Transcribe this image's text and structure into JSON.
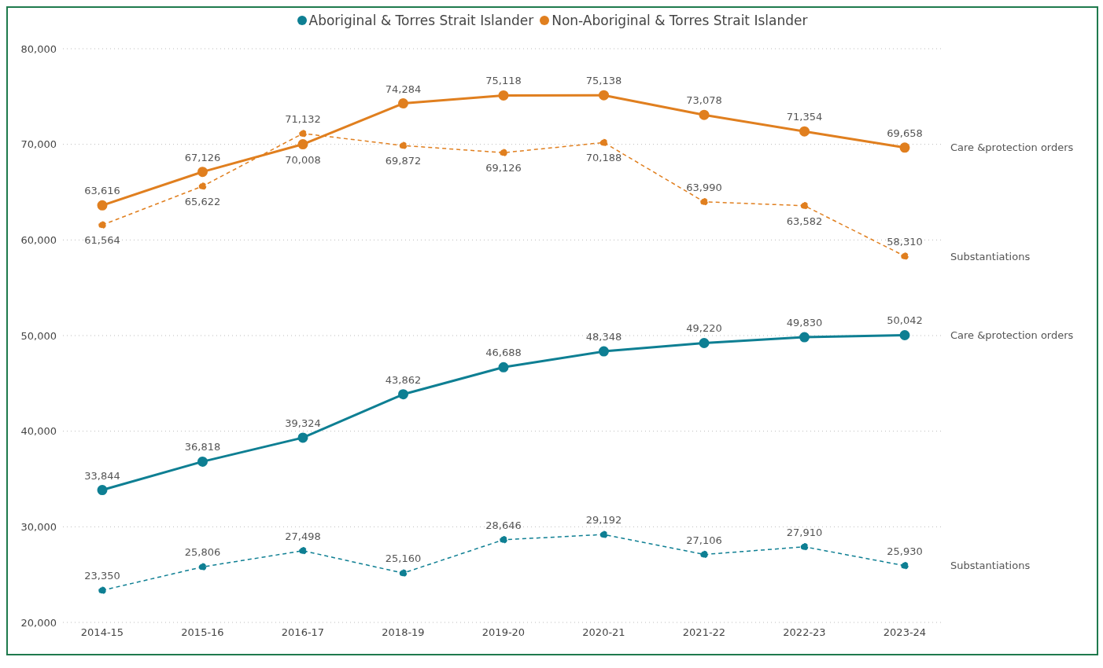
{
  "chart_data": {
    "type": "line",
    "categories": [
      "2014-15",
      "2015-16",
      "2016-17",
      "2018-19",
      "2019-20",
      "2020-21",
      "2021-22",
      "2022-23",
      "2023-24"
    ],
    "series": [
      {
        "name": "Care &protection orders",
        "color": "#0e7f93",
        "line_style": "solid",
        "values": [
          33844,
          36818,
          39324,
          43862,
          46688,
          48348,
          49220,
          49830,
          50042
        ],
        "value_labels": [
          "33,844",
          "36,818",
          "39,324",
          "43,862",
          "46,688",
          "48,348",
          "49,220",
          "49,830",
          "50,042"
        ]
      },
      {
        "name": "Substantiations",
        "color": "#0e7f93",
        "line_style": "dashed",
        "values": [
          23350,
          25806,
          27498,
          25160,
          28646,
          29192,
          27106,
          27910,
          25930
        ],
        "value_labels": [
          "23,350",
          "25,806",
          "27,498",
          "25,160",
          "28,646",
          "29,192",
          "27,106",
          "27,910",
          "25,930"
        ]
      },
      {
        "name": "Care &protection orders",
        "color": "#e07f1f",
        "line_style": "solid",
        "values": [
          63616,
          67126,
          70008,
          74284,
          75118,
          75138,
          73078,
          71354,
          69658
        ],
        "value_labels": [
          "63,616",
          "67,126",
          "70,008",
          "74,284",
          "75,118",
          "75,138",
          "73,078",
          "71,354",
          "69,658"
        ]
      },
      {
        "name": "Substantiations",
        "color": "#e07f1f",
        "line_style": "dashed",
        "values": [
          61564,
          65622,
          71132,
          69872,
          69126,
          70188,
          63990,
          63582,
          58310
        ],
        "value_labels": [
          "61,564",
          "65,622",
          "71,132",
          "69,872",
          "69,126",
          "70,188",
          "63,990",
          "63,582",
          "58,310"
        ]
      }
    ],
    "ylim": [
      20000,
      80000
    ],
    "yticks": [
      {
        "value": 20000,
        "label": "20,000"
      },
      {
        "value": 30000,
        "label": "30,000"
      },
      {
        "value": 40000,
        "label": "40,000"
      },
      {
        "value": 50000,
        "label": "50,000"
      },
      {
        "value": 60000,
        "label": "60,000"
      },
      {
        "value": 70000,
        "label": "70,000"
      },
      {
        "value": 80000,
        "label": "80,000"
      }
    ],
    "grid": "y",
    "marker": "circle",
    "annotations": [
      "Aboriginal & Torres Strait Islander",
      "Non-Aboriginal & Torres Strait Islander"
    ]
  }
}
